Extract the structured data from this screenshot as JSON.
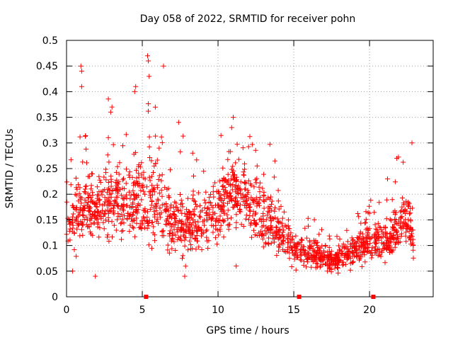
{
  "chart_data": {
    "type": "scatter",
    "title": "Day 058 of 2022, SRMTID for receiver pohn",
    "xlabel": "GPS time / hours",
    "ylabel": "SRMTID / TECUs",
    "xlim": [
      0,
      24.2
    ],
    "ylim": [
      0,
      0.5
    ],
    "xticks": [
      0,
      5,
      10,
      15,
      20
    ],
    "xtick_labels": [
      "0",
      "5",
      "10",
      "15",
      "20"
    ],
    "yticks": [
      0,
      0.05,
      0.1,
      0.15,
      0.2,
      0.25,
      0.3,
      0.35,
      0.4,
      0.45,
      0.5
    ],
    "ytick_labels": [
      "0",
      "0.05",
      "0.1",
      "0.15",
      "0.2",
      "0.25",
      "0.3",
      "0.35",
      "0.4",
      "0.45",
      "0.5"
    ],
    "grid": true,
    "series_color": "#ff0000",
    "gap_markers_x": [
      5.25,
      15.35,
      20.25
    ],
    "envelope": {
      "x": [
        0,
        0.5,
        1.0,
        2.0,
        3.0,
        4.0,
        4.5,
        5.0,
        5.5,
        6.0,
        6.5,
        7.0,
        7.5,
        8.0,
        9.0,
        10.0,
        10.5,
        11.0,
        12.0,
        13.0,
        13.5,
        14.0,
        14.5,
        15.0,
        16.0,
        17.0,
        17.5,
        18.0,
        19.0,
        20.0,
        21.0,
        21.5,
        22.0,
        22.5,
        22.9
      ],
      "mean": [
        0.14,
        0.15,
        0.17,
        0.18,
        0.19,
        0.18,
        0.19,
        0.2,
        0.18,
        0.19,
        0.17,
        0.13,
        0.14,
        0.14,
        0.15,
        0.17,
        0.2,
        0.21,
        0.19,
        0.16,
        0.15,
        0.13,
        0.11,
        0.09,
        0.085,
        0.075,
        0.07,
        0.075,
        0.09,
        0.11,
        0.11,
        0.12,
        0.14,
        0.16,
        0.1
      ],
      "spread": [
        0.04,
        0.05,
        0.06,
        0.05,
        0.06,
        0.05,
        0.07,
        0.08,
        0.07,
        0.06,
        0.06,
        0.04,
        0.05,
        0.05,
        0.05,
        0.05,
        0.06,
        0.05,
        0.05,
        0.05,
        0.05,
        0.04,
        0.035,
        0.025,
        0.025,
        0.02,
        0.02,
        0.02,
        0.025,
        0.03,
        0.03,
        0.035,
        0.04,
        0.05,
        0.02
      ]
    },
    "notable_points": [
      {
        "x": 0.95,
        "y": 0.45
      },
      {
        "x": 1.0,
        "y": 0.44
      },
      {
        "x": 1.0,
        "y": 0.41
      },
      {
        "x": 5.35,
        "y": 0.47
      },
      {
        "x": 5.4,
        "y": 0.46
      },
      {
        "x": 5.45,
        "y": 0.43
      },
      {
        "x": 6.4,
        "y": 0.45
      },
      {
        "x": 4.5,
        "y": 0.4
      },
      {
        "x": 3.0,
        "y": 0.37
      },
      {
        "x": 7.4,
        "y": 0.34
      },
      {
        "x": 11.0,
        "y": 0.35
      },
      {
        "x": 10.9,
        "y": 0.33
      },
      {
        "x": 22.8,
        "y": 0.3
      },
      {
        "x": 21.8,
        "y": 0.27
      },
      {
        "x": 1.9,
        "y": 0.04
      },
      {
        "x": 0.4,
        "y": 0.05
      },
      {
        "x": 7.8,
        "y": 0.04
      },
      {
        "x": 11.2,
        "y": 0.06
      }
    ]
  }
}
